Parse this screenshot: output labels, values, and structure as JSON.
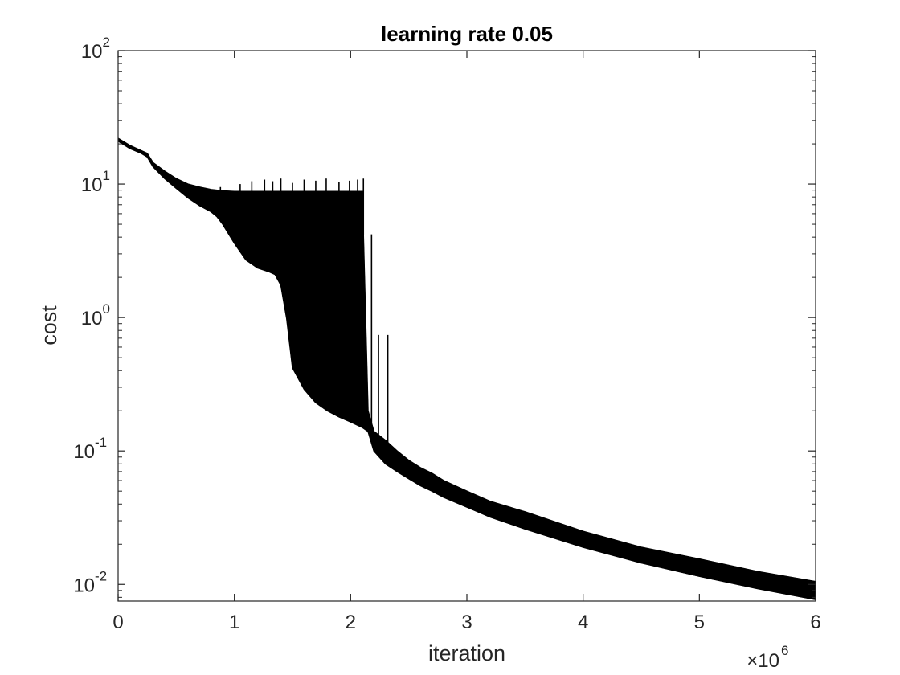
{
  "chart_data": {
    "type": "line",
    "title": "learning rate 0.05",
    "xlabel": "iteration",
    "ylabel": "cost",
    "xscale": "linear",
    "yscale": "log",
    "xlim": [
      0,
      6000000
    ],
    "ylim": [
      0.0075,
      100
    ],
    "x_exponent_label": {
      "base": "×10",
      "exp": "6"
    },
    "xticks": [
      {
        "value": 0,
        "label": "0"
      },
      {
        "value": 1000000,
        "label": "1"
      },
      {
        "value": 2000000,
        "label": "2"
      },
      {
        "value": 3000000,
        "label": "3"
      },
      {
        "value": 4000000,
        "label": "4"
      },
      {
        "value": 5000000,
        "label": "5"
      },
      {
        "value": 6000000,
        "label": "6"
      }
    ],
    "yticks": [
      {
        "value": 0.01,
        "base": "10",
        "exp": "-2"
      },
      {
        "value": 0.1,
        "base": "10",
        "exp": "-1"
      },
      {
        "value": 1,
        "base": "10",
        "exp": "0"
      },
      {
        "value": 10,
        "base": "10",
        "exp": "1"
      },
      {
        "value": 100,
        "base": "10",
        "exp": "2"
      }
    ],
    "grid": false,
    "line_color": "#000000",
    "series": [
      {
        "lower": {
          "x": [
            0,
            100000,
            200000,
            250000,
            300000,
            400000,
            500000,
            600000,
            700000,
            800000,
            850000,
            900000,
            1000000,
            1100000,
            1200000,
            1300000,
            1350000,
            1400000,
            1450000,
            1500000,
            1600000,
            1700000,
            1800000,
            1900000,
            2000000,
            2100000,
            2150000,
            2200000,
            2300000,
            2400000,
            2500000,
            2600000,
            2700000,
            2800000,
            3000000,
            3200000,
            3500000,
            4000000,
            4500000,
            5000000,
            5500000,
            6000000
          ],
          "y": [
            21,
            18.5,
            17,
            16,
            13.5,
            11,
            9.3,
            7.9,
            6.9,
            6.2,
            5.7,
            5.0,
            3.6,
            2.7,
            2.35,
            2.2,
            2.1,
            1.75,
            0.98,
            0.42,
            0.29,
            0.23,
            0.2,
            0.18,
            0.165,
            0.15,
            0.14,
            0.1,
            0.08,
            0.07,
            0.062,
            0.055,
            0.05,
            0.045,
            0.038,
            0.032,
            0.026,
            0.019,
            0.0145,
            0.0115,
            0.0093,
            0.0077
          ]
        },
        "upper": {
          "x": [
            0,
            100000,
            200000,
            250000,
            300000,
            400000,
            500000,
            600000,
            700000,
            800000,
            900000,
            1000000,
            1100000,
            1200000,
            1400000,
            1600000,
            1800000,
            2000000,
            2100000,
            2150000,
            2200000,
            2300000,
            2400000,
            2500000,
            2600000,
            2700000,
            2800000,
            3000000,
            3200000,
            3500000,
            4000000,
            4500000,
            5000000,
            5500000,
            6000000
          ],
          "y": [
            22,
            19.5,
            17.8,
            17,
            14.5,
            12.5,
            11,
            10,
            9.5,
            9.1,
            8.9,
            8.8,
            8.8,
            8.8,
            8.8,
            8.8,
            8.8,
            8.8,
            8.8,
            0.2,
            0.14,
            0.12,
            0.1,
            0.085,
            0.075,
            0.068,
            0.06,
            0.05,
            0.042,
            0.035,
            0.025,
            0.019,
            0.0155,
            0.0125,
            0.0105
          ]
        },
        "spikes": [
          {
            "x": 620000,
            "y": 9.2
          },
          {
            "x": 880000,
            "y": 9.5
          },
          {
            "x": 1050000,
            "y": 10
          },
          {
            "x": 1150000,
            "y": 10.5
          },
          {
            "x": 1260000,
            "y": 10.8
          },
          {
            "x": 1330000,
            "y": 10.5
          },
          {
            "x": 1400000,
            "y": 11
          },
          {
            "x": 1500000,
            "y": 10.2
          },
          {
            "x": 1600000,
            "y": 10.8
          },
          {
            "x": 1700000,
            "y": 10.6
          },
          {
            "x": 1790000,
            "y": 11
          },
          {
            "x": 1900000,
            "y": 10.4
          },
          {
            "x": 1990000,
            "y": 10.6
          },
          {
            "x": 2060000,
            "y": 10.8
          },
          {
            "x": 2110000,
            "y": 11
          },
          {
            "x": 2180000,
            "y": 4.2
          },
          {
            "x": 2240000,
            "y": 0.74
          },
          {
            "x": 2320000,
            "y": 0.74
          }
        ]
      }
    ]
  }
}
